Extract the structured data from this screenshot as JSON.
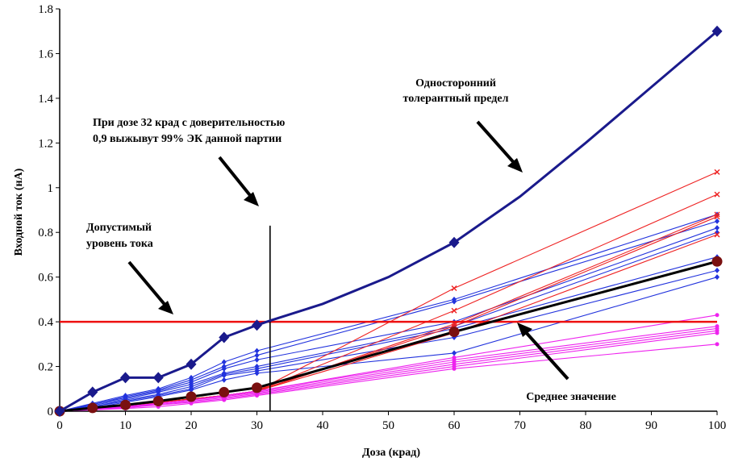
{
  "chart_data": {
    "type": "line",
    "xlabel": "Доза (крад)",
    "ylabel": "Входной ток (нА)",
    "xlim": [
      0,
      100
    ],
    "ylim": [
      0,
      1.8
    ],
    "xticks": [
      "0",
      "10",
      "20",
      "30",
      "40",
      "50",
      "60",
      "70",
      "80",
      "90",
      "100"
    ],
    "yticks": [
      "0",
      "0.2",
      "0.4",
      "0.6",
      "0.8",
      "1",
      "1.2",
      "1.4",
      "1.6",
      "1.8"
    ],
    "grid": false,
    "annotations": {
      "tolerance_l1": "Односторонний",
      "tolerance_l2": "толерантный предел",
      "dose_l1": "При дозе 32 крад с доверительностью",
      "dose_l2": "0,9 выжывут 99% ЭК данной партии",
      "allowed_l1": "Допустимый",
      "allowed_l2": "уровень тока",
      "mean": "Среднее значение"
    },
    "limit_level": 0.4,
    "dose_line_x": 32,
    "dose_line_top": 0.83,
    "tolerance_limit": {
      "name": "Односторонний толерантный предел",
      "color": "#1a1a8c",
      "x": [
        0,
        5,
        10,
        15,
        20,
        25,
        30
      ],
      "y": [
        0,
        0.085,
        0.15,
        0.15,
        0.21,
        0.33,
        0.385
      ],
      "curve_x": [
        30,
        32,
        40,
        50,
        60,
        70,
        80,
        90,
        100
      ],
      "curve_y": [
        0.385,
        0.405,
        0.48,
        0.6,
        0.755,
        0.96,
        1.2,
        1.45,
        1.7
      ],
      "markers_x": [
        0,
        5,
        10,
        15,
        20,
        25,
        30,
        60,
        100
      ],
      "markers_y": [
        0,
        0.085,
        0.15,
        0.15,
        0.21,
        0.33,
        0.385,
        0.755,
        1.7
      ]
    },
    "mean": {
      "name": "Среднее значение",
      "color": "#000000",
      "marker_color": "#7a1010",
      "x": [
        0,
        5,
        10,
        15,
        20,
        25,
        30,
        60,
        100
      ],
      "y": [
        0,
        0.015,
        0.028,
        0.045,
        0.065,
        0.085,
        0.105,
        0.355,
        0.67
      ]
    },
    "series": [
      {
        "group": "blue",
        "color": "#2233dd",
        "x": [
          0,
          5,
          10,
          15,
          20,
          25,
          30,
          60,
          100
        ],
        "y": [
          0,
          0.035,
          0.07,
          0.1,
          0.15,
          0.22,
          0.27,
          0.5,
          0.88
        ]
      },
      {
        "group": "blue",
        "color": "#2233dd",
        "x": [
          0,
          5,
          10,
          15,
          20,
          25,
          30,
          60,
          100
        ],
        "y": [
          0,
          0.03,
          0.065,
          0.095,
          0.14,
          0.2,
          0.25,
          0.49,
          0.85
        ]
      },
      {
        "group": "blue",
        "color": "#2233dd",
        "x": [
          0,
          5,
          10,
          15,
          20,
          25,
          30,
          60,
          100
        ],
        "y": [
          0,
          0.03,
          0.06,
          0.09,
          0.13,
          0.19,
          0.23,
          0.4,
          0.82
        ]
      },
      {
        "group": "blue",
        "color": "#2233dd",
        "x": [
          0,
          5,
          10,
          15,
          20,
          25,
          30,
          60,
          100
        ],
        "y": [
          0,
          0.025,
          0.055,
          0.085,
          0.12,
          0.17,
          0.2,
          0.38,
          0.8
        ]
      },
      {
        "group": "blue",
        "color": "#2233dd",
        "x": [
          0,
          5,
          10,
          15,
          20,
          25,
          30,
          60,
          100
        ],
        "y": [
          0,
          0.02,
          0.05,
          0.075,
          0.11,
          0.165,
          0.19,
          0.37,
          0.69
        ]
      },
      {
        "group": "blue",
        "color": "#2233dd",
        "x": [
          0,
          5,
          10,
          15,
          20,
          25,
          30,
          60,
          100
        ],
        "y": [
          0,
          0.02,
          0.045,
          0.07,
          0.1,
          0.16,
          0.18,
          0.33,
          0.63
        ]
      },
      {
        "group": "blue",
        "color": "#2233dd",
        "x": [
          0,
          5,
          10,
          15,
          20,
          25,
          30,
          60,
          100
        ],
        "y": [
          0,
          0.015,
          0.04,
          0.065,
          0.095,
          0.14,
          0.17,
          0.26,
          0.6
        ]
      },
      {
        "group": "red",
        "color": "#ee2222",
        "x": [
          0,
          5,
          10,
          15,
          20,
          25,
          30,
          60,
          100
        ],
        "y": [
          0,
          0.012,
          0.025,
          0.04,
          0.055,
          0.07,
          0.09,
          0.55,
          1.07
        ]
      },
      {
        "group": "red",
        "color": "#ee2222",
        "x": [
          0,
          5,
          10,
          15,
          20,
          25,
          30,
          60,
          100
        ],
        "y": [
          0,
          0.012,
          0.025,
          0.04,
          0.055,
          0.07,
          0.09,
          0.45,
          0.97
        ]
      },
      {
        "group": "red",
        "color": "#ee2222",
        "x": [
          0,
          5,
          10,
          15,
          20,
          25,
          30,
          60,
          100
        ],
        "y": [
          0,
          0.012,
          0.025,
          0.04,
          0.055,
          0.07,
          0.09,
          0.39,
          0.88
        ]
      },
      {
        "group": "red",
        "color": "#ee2222",
        "x": [
          0,
          5,
          10,
          15,
          20,
          25,
          30,
          60,
          100
        ],
        "y": [
          0,
          0.012,
          0.025,
          0.04,
          0.055,
          0.07,
          0.09,
          0.38,
          0.87
        ]
      },
      {
        "group": "red",
        "color": "#ee2222",
        "x": [
          0,
          5,
          10,
          15,
          20,
          25,
          30,
          60,
          100
        ],
        "y": [
          0,
          0.012,
          0.025,
          0.04,
          0.055,
          0.07,
          0.09,
          0.35,
          0.79
        ]
      },
      {
        "group": "magenta",
        "color": "#ee22ee",
        "x": [
          0,
          5,
          10,
          15,
          20,
          25,
          30,
          60,
          100
        ],
        "y": [
          0,
          0.008,
          0.02,
          0.035,
          0.05,
          0.07,
          0.09,
          0.24,
          0.43
        ]
      },
      {
        "group": "magenta",
        "color": "#ee22ee",
        "x": [
          0,
          5,
          10,
          15,
          20,
          25,
          30,
          60,
          100
        ],
        "y": [
          0,
          0.008,
          0.02,
          0.035,
          0.05,
          0.07,
          0.09,
          0.23,
          0.38
        ]
      },
      {
        "group": "magenta",
        "color": "#ee22ee",
        "x": [
          0,
          5,
          10,
          15,
          20,
          25,
          30,
          60,
          100
        ],
        "y": [
          0,
          0.008,
          0.02,
          0.035,
          0.05,
          0.065,
          0.085,
          0.22,
          0.37
        ]
      },
      {
        "group": "magenta",
        "color": "#ee22ee",
        "x": [
          0,
          5,
          10,
          15,
          20,
          25,
          30,
          60,
          100
        ],
        "y": [
          0,
          0.007,
          0.018,
          0.03,
          0.045,
          0.06,
          0.08,
          0.21,
          0.36
        ]
      },
      {
        "group": "magenta",
        "color": "#ee22ee",
        "x": [
          0,
          5,
          10,
          15,
          20,
          25,
          30,
          60,
          100
        ],
        "y": [
          0,
          0.007,
          0.015,
          0.028,
          0.04,
          0.055,
          0.075,
          0.2,
          0.35
        ]
      },
      {
        "group": "magenta",
        "color": "#ee22ee",
        "x": [
          0,
          5,
          10,
          15,
          20,
          25,
          30,
          60,
          100
        ],
        "y": [
          0,
          0.006,
          0.012,
          0.02,
          0.035,
          0.05,
          0.07,
          0.19,
          0.3
        ]
      }
    ]
  }
}
